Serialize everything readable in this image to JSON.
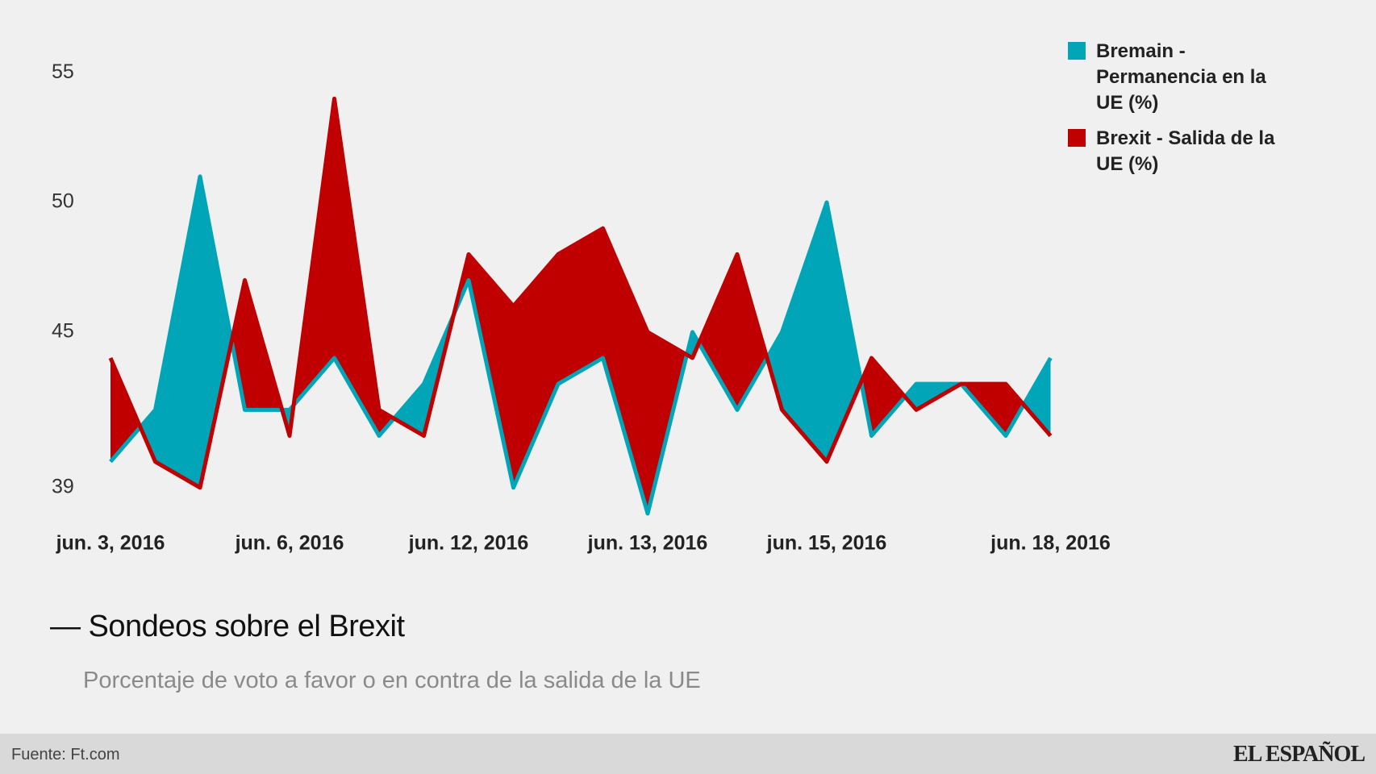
{
  "chart_data": {
    "type": "line",
    "title": "— Sondeos sobre el Brexit",
    "subtitle": "Porcentaje de voto a favor o en contra de la salida de la UE",
    "categories": [
      "jun. 3, 2016",
      null,
      null,
      null,
      "jun. 6, 2016",
      null,
      null,
      null,
      "jun. 12, 2016",
      null,
      null,
      null,
      "jun. 13, 2016",
      null,
      null,
      null,
      "jun. 15, 2016",
      null,
      null,
      null,
      null,
      "jun. 18, 2016"
    ],
    "series": [
      {
        "name": "Bremain - Permanencia en la UE (%)",
        "color": "#00a5b8",
        "values": [
          40,
          42,
          51,
          42,
          42,
          44,
          41,
          43,
          47,
          39,
          43,
          44,
          38,
          45,
          42,
          45,
          50,
          41,
          43,
          43,
          41,
          44
        ]
      },
      {
        "name": "Brexit - Salida de la UE (%)",
        "color": "#c00000",
        "values": [
          44,
          40,
          39,
          47,
          41,
          54,
          42,
          41,
          48,
          46,
          48,
          49,
          45,
          44,
          48,
          42,
          40,
          44,
          42,
          43,
          43,
          41
        ]
      }
    ],
    "ylim": [
      38,
      56
    ],
    "yticks": [
      39,
      45,
      50,
      55
    ],
    "grid": false,
    "legend": "top-right",
    "source": "Fuente: Ft.com",
    "logo": "EL ESPAÑOL"
  }
}
